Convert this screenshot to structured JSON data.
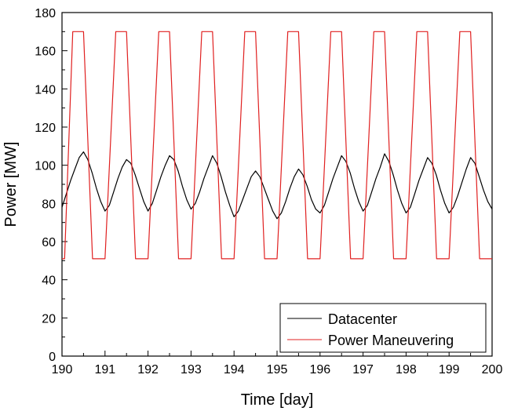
{
  "chart_data": {
    "type": "line",
    "title": "",
    "xlabel": "Time [day]",
    "ylabel": "Power [MW]",
    "xlim": [
      190,
      200
    ],
    "ylim": [
      0,
      180
    ],
    "x_ticks": [
      190,
      191,
      192,
      193,
      194,
      195,
      196,
      197,
      198,
      199,
      200
    ],
    "y_ticks": [
      0,
      20,
      40,
      60,
      80,
      100,
      120,
      140,
      160,
      180
    ],
    "grid": false,
    "legend_position": "bottom-right",
    "series": [
      {
        "name": "Datacenter",
        "color": "#000000",
        "x": [
          190.0,
          190.1,
          190.2,
          190.3,
          190.4,
          190.5,
          190.6,
          190.7,
          190.8,
          190.9,
          191.0,
          191.1,
          191.2,
          191.3,
          191.4,
          191.5,
          191.6,
          191.7,
          191.8,
          191.9,
          192.0,
          192.1,
          192.2,
          192.3,
          192.4,
          192.5,
          192.6,
          192.7,
          192.8,
          192.9,
          193.0,
          193.1,
          193.2,
          193.3,
          193.4,
          193.5,
          193.6,
          193.7,
          193.8,
          193.9,
          194.0,
          194.1,
          194.2,
          194.3,
          194.4,
          194.5,
          194.6,
          194.7,
          194.8,
          194.9,
          195.0,
          195.1,
          195.2,
          195.3,
          195.4,
          195.5,
          195.6,
          195.7,
          195.8,
          195.9,
          196.0,
          196.1,
          196.2,
          196.3,
          196.4,
          196.5,
          196.6,
          196.7,
          196.8,
          196.9,
          197.0,
          197.1,
          197.2,
          197.3,
          197.4,
          197.5,
          197.6,
          197.7,
          197.8,
          197.9,
          198.0,
          198.1,
          198.2,
          198.3,
          198.4,
          198.5,
          198.6,
          198.7,
          198.8,
          198.9,
          199.0,
          199.1,
          199.2,
          199.3,
          199.4,
          199.5,
          199.6,
          199.7,
          199.8,
          199.9,
          200.0
        ],
        "values": [
          78,
          85,
          92,
          98,
          104,
          107,
          103,
          96,
          88,
          81,
          76,
          79,
          86,
          93,
          99,
          103,
          101,
          95,
          88,
          81,
          76,
          80,
          87,
          94,
          100,
          105,
          103,
          97,
          89,
          82,
          77,
          80,
          86,
          93,
          99,
          105,
          101,
          94,
          86,
          79,
          73,
          76,
          82,
          88,
          94,
          97,
          94,
          88,
          82,
          76,
          72,
          75,
          81,
          88,
          94,
          98,
          95,
          89,
          82,
          77,
          75,
          79,
          86,
          93,
          99,
          105,
          102,
          96,
          88,
          81,
          76,
          79,
          86,
          93,
          99,
          106,
          102,
          95,
          87,
          80,
          75,
          78,
          85,
          92,
          98,
          104,
          101,
          95,
          87,
          80,
          75,
          78,
          84,
          91,
          98,
          104,
          101,
          94,
          87,
          81,
          77
        ]
      },
      {
        "name": "Power Maneuvering",
        "color": "#e02020",
        "x": [
          190.0,
          190.06,
          190.25,
          190.5,
          190.71,
          190.92,
          191.0,
          191.25,
          191.5,
          191.71,
          191.92,
          192.0,
          192.25,
          192.5,
          192.71,
          192.92,
          193.0,
          193.25,
          193.5,
          193.71,
          193.92,
          194.0,
          194.25,
          194.5,
          194.71,
          194.92,
          195.0,
          195.25,
          195.5,
          195.71,
          195.92,
          196.0,
          196.25,
          196.5,
          196.71,
          196.92,
          197.0,
          197.25,
          197.5,
          197.71,
          197.92,
          198.0,
          198.25,
          198.5,
          198.71,
          198.92,
          199.0,
          199.25,
          199.5,
          199.71,
          199.92,
          200.0
        ],
        "values": [
          51,
          51,
          170,
          170,
          51,
          51,
          51,
          170,
          170,
          51,
          51,
          51,
          170,
          170,
          51,
          51,
          51,
          170,
          170,
          51,
          51,
          51,
          170,
          170,
          51,
          51,
          51,
          170,
          170,
          51,
          51,
          51,
          170,
          170,
          51,
          51,
          51,
          170,
          170,
          51,
          51,
          51,
          170,
          170,
          51,
          51,
          51,
          170,
          170,
          51,
          51,
          51
        ]
      }
    ]
  }
}
